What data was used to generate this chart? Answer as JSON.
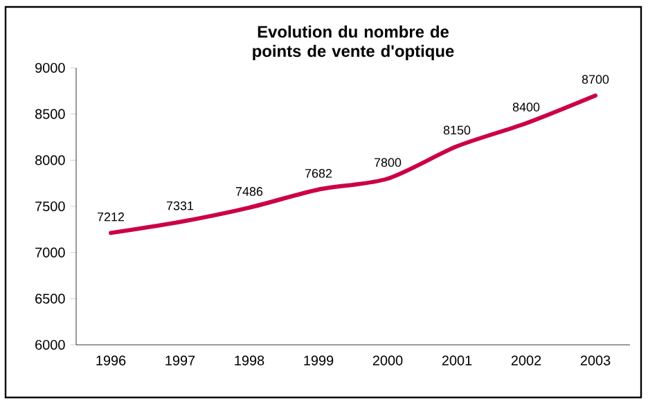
{
  "chart_data": {
    "type": "line",
    "title": "Evolution du nombre de points de vente d'optique",
    "categories": [
      "1996",
      "1997",
      "1998",
      "1999",
      "2000",
      "2001",
      "2002",
      "2003"
    ],
    "series": [
      {
        "color": "#cc0044",
        "values": [
          7212,
          7331,
          7486,
          7682,
          7800,
          8150,
          8400,
          8700
        ]
      }
    ],
    "ylim": [
      6000,
      9000
    ],
    "yticks": [
      6000,
      6500,
      7000,
      7500,
      8000,
      8500,
      9000
    ],
    "data_labels": true,
    "marker": "none"
  }
}
